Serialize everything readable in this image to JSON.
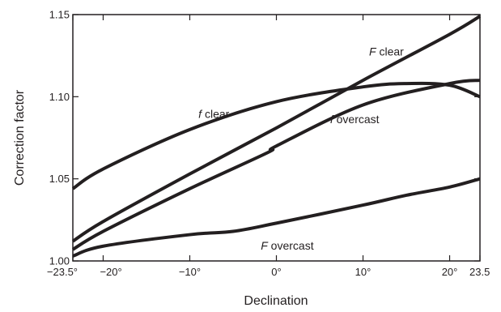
{
  "chart_data": {
    "type": "line",
    "xlabel": "Declination",
    "ylabel": "Correction factor",
    "xlim": [
      -23.5,
      23.5
    ],
    "ylim": [
      1.0,
      1.15
    ],
    "grid": false,
    "legend": "none",
    "x_ticks": [
      {
        "value": -23.5,
        "label": "−23.5°"
      },
      {
        "value": -20,
        "label": "−20°"
      },
      {
        "value": -10,
        "label": "−10°"
      },
      {
        "value": 0,
        "label": "0°"
      },
      {
        "value": 10,
        "label": "10°"
      },
      {
        "value": 20,
        "label": "20°"
      },
      {
        "value": 23.5,
        "label": "23.5"
      }
    ],
    "y_ticks": [
      {
        "value": 1.0,
        "label": "1.00"
      },
      {
        "value": 1.05,
        "label": "1.05"
      },
      {
        "value": 1.1,
        "label": "1.10"
      },
      {
        "value": 1.15,
        "label": "1.15"
      }
    ],
    "series": [
      {
        "name": "F clear",
        "label_symbol": "F",
        "label_text": " clear",
        "x": [
          -23.5,
          -20,
          -10,
          0,
          10,
          20,
          23.5
        ],
        "y": [
          1.012,
          1.024,
          1.053,
          1.081,
          1.11,
          1.138,
          1.149
        ]
      },
      {
        "name": "f clear",
        "label_symbol": "f",
        "label_text": " clear",
        "x": [
          -23.5,
          -20,
          -10,
          0,
          10,
          15,
          20,
          23.5
        ],
        "y": [
          1.044,
          1.056,
          1.08,
          1.097,
          1.106,
          1.108,
          1.107,
          1.1
        ]
      },
      {
        "name": "f overcast",
        "label_symbol": "f",
        "label_text": " overcast",
        "x": [
          -23.5,
          -20,
          -10,
          -1,
          0,
          10,
          20,
          23.5
        ],
        "y": [
          1.007,
          1.018,
          1.044,
          1.066,
          1.07,
          1.095,
          1.108,
          1.11
        ]
      },
      {
        "name": "F overcast",
        "label_symbol": "F",
        "label_text": " overcast",
        "x": [
          -23.5,
          -20,
          -10,
          -5,
          0,
          10,
          15,
          20,
          23.5
        ],
        "y": [
          1.003,
          1.009,
          1.016,
          1.018,
          1.023,
          1.034,
          1.04,
          1.045,
          1.05
        ]
      }
    ],
    "annotations": [
      {
        "series": "F clear",
        "x": 10.7,
        "y": 1.125
      },
      {
        "series": "f clear",
        "x": -9.0,
        "y": 1.087
      },
      {
        "series": "f overcast",
        "x": 6.2,
        "y": 1.084
      },
      {
        "series": "F overcast",
        "x": -1.8,
        "y": 1.007
      }
    ],
    "colors": {
      "line": "#231f20",
      "text": "#231f20"
    }
  }
}
